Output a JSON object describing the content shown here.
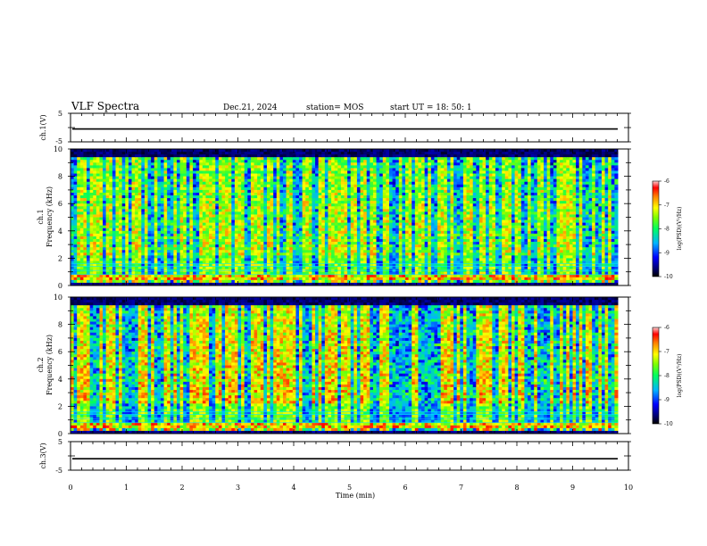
{
  "header": {
    "title": "VLF Spectra",
    "date": "Dec.21, 2024",
    "station": "station= MOS",
    "start_ut": "start UT =  18: 50: 1"
  },
  "chart_data": [
    {
      "type": "line",
      "name": "ch.1 waveform",
      "ylabel": "ch.1(V)",
      "ylim": [
        -5,
        5
      ],
      "yticks": [
        "5",
        "-5"
      ],
      "level": -0.5
    },
    {
      "type": "heatmap",
      "name": "ch.1 spectrogram",
      "ylabel_top": "ch.1",
      "ylabel": "Frequency (kHz)",
      "ylim": [
        0,
        10
      ],
      "yticks": [
        "0",
        "2",
        "4",
        "6",
        "8",
        "10"
      ],
      "colorbar": {
        "label": "log(PSD)(V²/Hz)",
        "min": -10,
        "max": -6,
        "ticks": [
          "-6",
          "-7",
          "-8",
          "-9",
          "-10"
        ]
      }
    },
    {
      "type": "heatmap",
      "name": "ch.2 spectrogram",
      "ylabel_top": "ch.2",
      "ylabel": "Frequency (kHz)",
      "ylim": [
        0,
        10
      ],
      "yticks": [
        "0",
        "2",
        "4",
        "6",
        "8",
        "10"
      ],
      "colorbar": {
        "label": "log(PSD)(V²/Hz)",
        "min": -10,
        "max": -6,
        "ticks": [
          "-6",
          "-7",
          "-8",
          "-9",
          "-10"
        ]
      }
    },
    {
      "type": "line",
      "name": "ch.3 waveform",
      "ylabel": "ch.3(V)",
      "ylim": [
        -5,
        5
      ],
      "yticks": [
        "5",
        "-5"
      ],
      "level": -1
    }
  ],
  "xaxis": {
    "label": "Time (min)",
    "range": [
      0,
      10
    ],
    "ticks": [
      "0",
      "1",
      "2",
      "3",
      "4",
      "5",
      "6",
      "7",
      "8",
      "9",
      "10"
    ]
  },
  "colors": {
    "low": "#000040",
    "mid": "#00c8ff",
    "high": "#ff2020"
  }
}
